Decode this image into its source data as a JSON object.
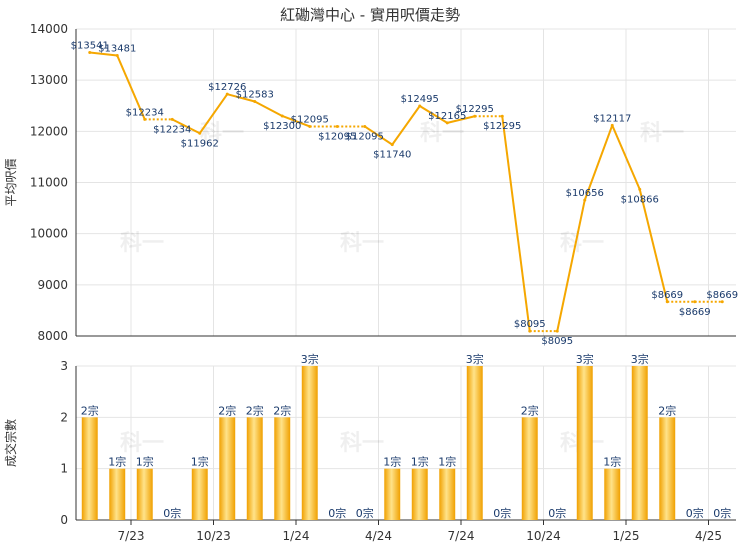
{
  "title": "紅磡灣中心 - 實用呎價走勢",
  "watermark": "科一",
  "colors": {
    "line": "#f5a700",
    "bar_light": "#ffe38a",
    "bar_dark": "#f0a000",
    "grid": "#e4e4e4",
    "axis": "#333333",
    "label": "#1a3a6b"
  },
  "chart_data": [
    {
      "type": "line",
      "ylabel": "平均呎價",
      "ylim": [
        8000,
        14000
      ],
      "yticks": [
        8000,
        9000,
        10000,
        11000,
        12000,
        13000,
        14000
      ],
      "series": [
        {
          "values": [
            13541,
            13481,
            12234,
            12234,
            11962,
            12726,
            12583,
            12300,
            12095,
            12095,
            12095,
            11740,
            12495,
            12165,
            12295,
            12295,
            8095,
            8095,
            10656,
            12117,
            10866,
            8669,
            8669,
            8669
          ]
        }
      ],
      "data_labels": [
        "$13541",
        "$13481",
        "$12234",
        "$12234",
        "$11962",
        "$12726",
        "$12583",
        "$12300",
        "$12095",
        "$12095",
        "$12095",
        "$11740",
        "$12495",
        "$12165",
        "$12295",
        "$12295",
        "$8095",
        "$8095",
        "$10656",
        "$12117",
        "$10866",
        "$8669",
        "$8669",
        "$8669"
      ],
      "segment_styles": [
        "solid",
        "solid",
        "dotted",
        "solid",
        "solid",
        "solid",
        "solid",
        "solid",
        "dotted",
        "dotted",
        "solid",
        "solid",
        "solid",
        "solid",
        "dotted",
        "solid",
        "dotted",
        "solid",
        "solid",
        "solid",
        "solid",
        "dotted",
        "dotted"
      ]
    },
    {
      "type": "bar",
      "ylabel": "成交宗數",
      "ylim": [
        0,
        3
      ],
      "yticks": [
        0,
        1,
        2,
        3
      ],
      "values": [
        2,
        1,
        1,
        0,
        1,
        2,
        2,
        2,
        3,
        0,
        0,
        1,
        1,
        1,
        3,
        0,
        2,
        0,
        3,
        1,
        3,
        2,
        0,
        0
      ],
      "bar_labels": [
        "2宗",
        "1宗",
        "1宗",
        "0宗",
        "1宗",
        "2宗",
        "2宗",
        "2宗",
        "3宗",
        "0宗",
        "0宗",
        "1宗",
        "1宗",
        "1宗",
        "3宗",
        "0宗",
        "2宗",
        "0宗",
        "3宗",
        "1宗",
        "3宗",
        "2宗",
        "0宗",
        "0宗"
      ],
      "x_tick_labels": [
        "7/23",
        "10/23",
        "1/24",
        "4/24",
        "7/24",
        "10/24",
        "1/25",
        "4/25"
      ],
      "x_tick_after_index": [
        1,
        4,
        7,
        10,
        13,
        16,
        19,
        22
      ]
    }
  ]
}
